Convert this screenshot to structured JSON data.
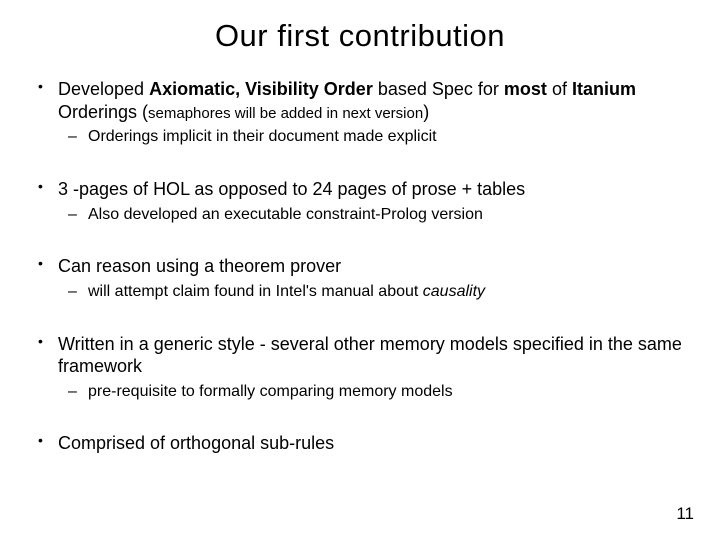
{
  "title": "Our first contribution",
  "bullets": [
    {
      "parts": [
        {
          "t": "Developed ",
          "b": false
        },
        {
          "t": "Axiomatic, Visibility Order",
          "b": true
        },
        {
          "t": " based Spec for ",
          "b": false
        },
        {
          "t": "most",
          "b": true
        },
        {
          "t": " of ",
          "b": false
        },
        {
          "t": "Itanium",
          "b": true
        },
        {
          "t": " Orderings (",
          "b": false
        },
        {
          "t": "semaphores will be added in next version",
          "b": false,
          "small": true
        },
        {
          "t": ")",
          "b": false
        }
      ],
      "sub": [
        "Orderings implicit in their document made explicit"
      ]
    },
    {
      "parts": [
        {
          "t": "3 -pages of HOL as opposed to 24 pages of prose + tables",
          "b": false
        }
      ],
      "sub": [
        "Also developed an executable constraint-Prolog version"
      ]
    },
    {
      "parts": [
        {
          "t": "Can reason using a theorem prover",
          "b": false
        }
      ],
      "sub_parts": [
        [
          {
            "t": "will attempt claim found in Intel's manual about ",
            "i": false
          },
          {
            "t": "causality",
            "i": true
          }
        ]
      ]
    },
    {
      "parts": [
        {
          "t": "Written in a generic style - several other memory models specified in the same framework",
          "b": false
        }
      ],
      "sub": [
        "pre-requisite to formally comparing memory models"
      ]
    },
    {
      "parts": [
        {
          "t": "Comprised of orthogonal sub-rules",
          "b": false
        }
      ],
      "sub": []
    }
  ],
  "page_number": "11",
  "colors": {
    "background": "#ffffff",
    "text": "#000000"
  },
  "fonts": {
    "title_size_pt": 31,
    "body_size_pt": 18,
    "sub_size_pt": 16
  }
}
